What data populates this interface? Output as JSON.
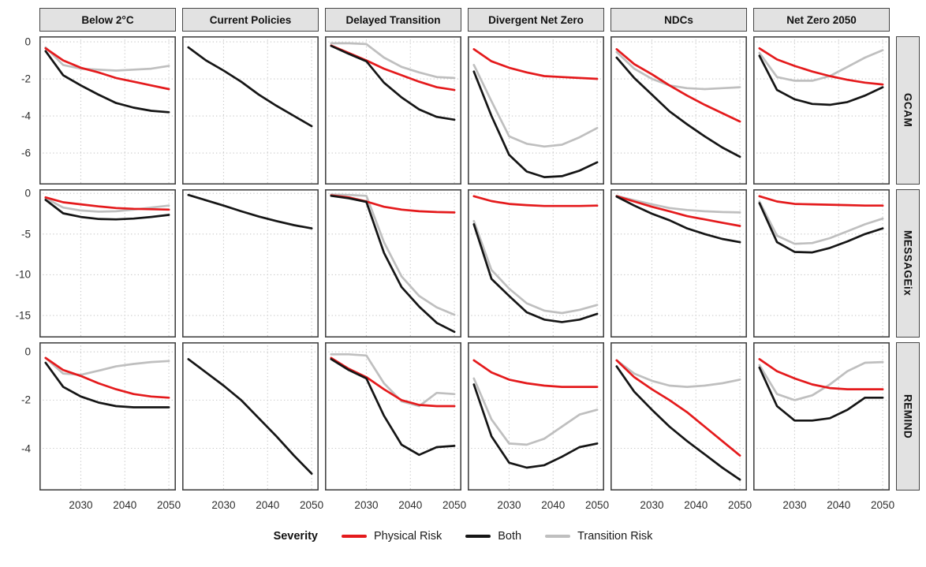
{
  "chart_data": {
    "type": "line",
    "x": [
      2022,
      2026,
      2030,
      2034,
      2038,
      2042,
      2046,
      2050
    ],
    "xlim": [
      2020.6,
      2051.6
    ],
    "xticks": [
      2030,
      2040,
      2050
    ],
    "grid": "dotted",
    "col_facets": [
      "Below 2°C",
      "Current Policies",
      "Delayed Transition",
      "Divergent Net Zero",
      "NDCs",
      "Net Zero 2050"
    ],
    "row_facets": [
      "GCAM",
      "MESSAGEix",
      "REMIND"
    ],
    "legend": {
      "title": "Severity",
      "entries": [
        {
          "label": "Physical Risk",
          "color": "#e41a1c"
        },
        {
          "label": "Both",
          "color": "#151515"
        },
        {
          "label": "Transition Risk",
          "color": "#bfbfbf"
        }
      ]
    },
    "rows": [
      {
        "model": "GCAM",
        "ylim": [
          -7.7,
          0.3
        ],
        "yticks": [
          0,
          -2,
          -4,
          -6
        ],
        "panels": [
          {
            "scenario": "Below 2°C",
            "series": [
              {
                "name": "Transition Risk",
                "values": [
                  -0.3,
                  -1.25,
                  -1.45,
                  -1.5,
                  -1.55,
                  -1.5,
                  -1.45,
                  -1.3
                ]
              },
              {
                "name": "Physical Risk",
                "values": [
                  -0.35,
                  -1.0,
                  -1.4,
                  -1.65,
                  -1.95,
                  -2.15,
                  -2.35,
                  -2.55
                ]
              },
              {
                "name": "Both",
                "values": [
                  -0.5,
                  -1.8,
                  -2.35,
                  -2.85,
                  -3.3,
                  -3.55,
                  -3.72,
                  -3.8
                ]
              }
            ]
          },
          {
            "scenario": "Current Policies",
            "series": [
              {
                "name": "Both",
                "values": [
                  -0.3,
                  -1.0,
                  -1.55,
                  -2.15,
                  -2.85,
                  -3.45,
                  -4.0,
                  -4.55
                ]
              }
            ]
          },
          {
            "scenario": "Delayed Transition",
            "series": [
              {
                "name": "Transition Risk",
                "values": [
                  -0.08,
                  -0.08,
                  -0.12,
                  -0.85,
                  -1.35,
                  -1.65,
                  -1.9,
                  -1.95
                ]
              },
              {
                "name": "Physical Risk",
                "values": [
                  -0.2,
                  -0.6,
                  -1.0,
                  -1.45,
                  -1.8,
                  -2.15,
                  -2.45,
                  -2.6
                ]
              },
              {
                "name": "Both",
                "values": [
                  -0.22,
                  -0.65,
                  -1.05,
                  -2.2,
                  -3.0,
                  -3.65,
                  -4.05,
                  -4.2
                ]
              }
            ]
          },
          {
            "scenario": "Divergent Net Zero",
            "series": [
              {
                "name": "Transition Risk",
                "values": [
                  -1.25,
                  -3.2,
                  -5.1,
                  -5.5,
                  -5.65,
                  -5.55,
                  -5.15,
                  -4.65
                ]
              },
              {
                "name": "Physical Risk",
                "values": [
                  -0.4,
                  -1.05,
                  -1.4,
                  -1.65,
                  -1.85,
                  -1.9,
                  -1.95,
                  -2.0
                ]
              },
              {
                "name": "Both",
                "values": [
                  -1.6,
                  -4.0,
                  -6.1,
                  -7.0,
                  -7.3,
                  -7.25,
                  -6.95,
                  -6.5
                ]
              }
            ]
          },
          {
            "scenario": "NDCs",
            "series": [
              {
                "name": "Transition Risk",
                "values": [
                  -0.55,
                  -1.45,
                  -2.0,
                  -2.35,
                  -2.5,
                  -2.55,
                  -2.5,
                  -2.45
                ]
              },
              {
                "name": "Physical Risk",
                "values": [
                  -0.4,
                  -1.2,
                  -1.75,
                  -2.35,
                  -2.9,
                  -3.4,
                  -3.85,
                  -4.3
                ]
              },
              {
                "name": "Both",
                "values": [
                  -0.85,
                  -1.95,
                  -2.85,
                  -3.75,
                  -4.45,
                  -5.1,
                  -5.7,
                  -6.2
                ]
              }
            ]
          },
          {
            "scenario": "Net Zero 2050",
            "series": [
              {
                "name": "Transition Risk",
                "values": [
                  -0.6,
                  -1.9,
                  -2.1,
                  -2.1,
                  -1.85,
                  -1.35,
                  -0.85,
                  -0.45
                ]
              },
              {
                "name": "Physical Risk",
                "values": [
                  -0.35,
                  -0.95,
                  -1.3,
                  -1.6,
                  -1.85,
                  -2.05,
                  -2.2,
                  -2.3
                ]
              },
              {
                "name": "Both",
                "values": [
                  -0.75,
                  -2.6,
                  -3.1,
                  -3.35,
                  -3.4,
                  -3.25,
                  -2.9,
                  -2.45
                ]
              }
            ]
          }
        ]
      },
      {
        "model": "MESSAGEix",
        "ylim": [
          -17.7,
          0.5
        ],
        "yticks": [
          0,
          -5,
          -10,
          -15
        ],
        "panels": [
          {
            "scenario": "Below 2°C",
            "series": [
              {
                "name": "Transition Risk",
                "values": [
                  -0.6,
                  -1.75,
                  -2.1,
                  -2.25,
                  -2.2,
                  -2.0,
                  -1.75,
                  -1.5
                ]
              },
              {
                "name": "Physical Risk",
                "values": [
                  -0.5,
                  -1.1,
                  -1.35,
                  -1.6,
                  -1.8,
                  -1.9,
                  -1.95,
                  -2.0
                ]
              },
              {
                "name": "Both",
                "values": [
                  -0.8,
                  -2.45,
                  -2.9,
                  -3.15,
                  -3.2,
                  -3.1,
                  -2.9,
                  -2.65
                ]
              }
            ]
          },
          {
            "scenario": "Current Policies",
            "series": [
              {
                "name": "Both",
                "values": [
                  -0.2,
                  -0.85,
                  -1.5,
                  -2.2,
                  -2.85,
                  -3.4,
                  -3.9,
                  -4.3
                ]
              }
            ]
          },
          {
            "scenario": "Delayed Transition",
            "series": [
              {
                "name": "Transition Risk",
                "values": [
                  -0.15,
                  -0.2,
                  -0.3,
                  -6.0,
                  -10.2,
                  -12.6,
                  -14.0,
                  -14.9
                ]
              },
              {
                "name": "Physical Risk",
                "values": [
                  -0.25,
                  -0.5,
                  -1.0,
                  -1.65,
                  -2.0,
                  -2.2,
                  -2.3,
                  -2.35
                ]
              },
              {
                "name": "Both",
                "values": [
                  -0.3,
                  -0.6,
                  -1.05,
                  -7.3,
                  -11.5,
                  -13.9,
                  -15.9,
                  -17.0
                ]
              }
            ]
          },
          {
            "scenario": "Divergent Net Zero",
            "series": [
              {
                "name": "Transition Risk",
                "values": [
                  -3.4,
                  -9.4,
                  -11.7,
                  -13.5,
                  -14.4,
                  -14.7,
                  -14.3,
                  -13.7
                ]
              },
              {
                "name": "Physical Risk",
                "values": [
                  -0.35,
                  -0.95,
                  -1.3,
                  -1.45,
                  -1.55,
                  -1.55,
                  -1.55,
                  -1.5
                ]
              },
              {
                "name": "Both",
                "values": [
                  -3.8,
                  -10.5,
                  -12.6,
                  -14.6,
                  -15.5,
                  -15.8,
                  -15.5,
                  -14.8
                ]
              }
            ]
          },
          {
            "scenario": "NDCs",
            "series": [
              {
                "name": "Transition Risk",
                "values": [
                  -0.3,
                  -0.85,
                  -1.35,
                  -1.8,
                  -2.05,
                  -2.2,
                  -2.3,
                  -2.35
                ]
              },
              {
                "name": "Physical Risk",
                "values": [
                  -0.35,
                  -1.0,
                  -1.65,
                  -2.2,
                  -2.8,
                  -3.2,
                  -3.6,
                  -4.0
                ]
              },
              {
                "name": "Both",
                "values": [
                  -0.4,
                  -1.5,
                  -2.5,
                  -3.3,
                  -4.3,
                  -5.0,
                  -5.6,
                  -6.0
                ]
              }
            ]
          },
          {
            "scenario": "Net Zero 2050",
            "series": [
              {
                "name": "Transition Risk",
                "values": [
                  -1.0,
                  -5.2,
                  -6.2,
                  -6.1,
                  -5.5,
                  -4.65,
                  -3.8,
                  -3.1
                ]
              },
              {
                "name": "Physical Risk",
                "values": [
                  -0.35,
                  -1.0,
                  -1.3,
                  -1.35,
                  -1.4,
                  -1.45,
                  -1.5,
                  -1.5
                ]
              },
              {
                "name": "Both",
                "values": [
                  -1.2,
                  -6.0,
                  -7.2,
                  -7.25,
                  -6.7,
                  -5.9,
                  -5.0,
                  -4.3
                ]
              }
            ]
          }
        ]
      },
      {
        "model": "REMIND",
        "ylim": [
          -5.75,
          0.4
        ],
        "yticks": [
          0,
          -2,
          -4
        ],
        "panels": [
          {
            "scenario": "Below 2°C",
            "series": [
              {
                "name": "Transition Risk",
                "values": [
                  -0.25,
                  -0.9,
                  -0.95,
                  -0.78,
                  -0.6,
                  -0.5,
                  -0.42,
                  -0.38
                ]
              },
              {
                "name": "Physical Risk",
                "values": [
                  -0.25,
                  -0.75,
                  -1.0,
                  -1.3,
                  -1.55,
                  -1.75,
                  -1.85,
                  -1.9
                ]
              },
              {
                "name": "Both",
                "values": [
                  -0.45,
                  -1.45,
                  -1.85,
                  -2.1,
                  -2.25,
                  -2.3,
                  -2.3,
                  -2.3
                ]
              }
            ]
          },
          {
            "scenario": "Current Policies",
            "series": [
              {
                "name": "Both",
                "values": [
                  -0.3,
                  -0.85,
                  -1.4,
                  -2.0,
                  -2.75,
                  -3.5,
                  -4.3,
                  -5.05
                ]
              }
            ]
          },
          {
            "scenario": "Delayed Transition",
            "series": [
              {
                "name": "Transition Risk",
                "values": [
                  -0.1,
                  -0.1,
                  -0.15,
                  -1.3,
                  -2.05,
                  -2.25,
                  -1.7,
                  -1.75
                ]
              },
              {
                "name": "Physical Risk",
                "values": [
                  -0.25,
                  -0.7,
                  -1.05,
                  -1.55,
                  -2.0,
                  -2.2,
                  -2.25,
                  -2.25
                ]
              },
              {
                "name": "Both",
                "values": [
                  -0.3,
                  -0.75,
                  -1.1,
                  -2.65,
                  -3.85,
                  -4.27,
                  -3.95,
                  -3.9
                ]
              }
            ]
          },
          {
            "scenario": "Divergent Net Zero",
            "series": [
              {
                "name": "Transition Risk",
                "values": [
                  -1.1,
                  -2.8,
                  -3.8,
                  -3.85,
                  -3.6,
                  -3.1,
                  -2.6,
                  -2.4
                ]
              },
              {
                "name": "Physical Risk",
                "values": [
                  -0.35,
                  -0.85,
                  -1.15,
                  -1.3,
                  -1.4,
                  -1.45,
                  -1.45,
                  -1.45
                ]
              },
              {
                "name": "Both",
                "values": [
                  -1.35,
                  -3.5,
                  -4.6,
                  -4.8,
                  -4.7,
                  -4.35,
                  -3.95,
                  -3.8
                ]
              }
            ]
          },
          {
            "scenario": "NDCs",
            "series": [
              {
                "name": "Transition Risk",
                "values": [
                  -0.35,
                  -0.9,
                  -1.2,
                  -1.4,
                  -1.45,
                  -1.4,
                  -1.3,
                  -1.15
                ]
              },
              {
                "name": "Physical Risk",
                "values": [
                  -0.35,
                  -1.05,
                  -1.55,
                  -2.0,
                  -2.5,
                  -3.1,
                  -3.7,
                  -4.3
                ]
              },
              {
                "name": "Both",
                "values": [
                  -0.6,
                  -1.65,
                  -2.4,
                  -3.1,
                  -3.7,
                  -4.25,
                  -4.8,
                  -5.3
                ]
              }
            ]
          },
          {
            "scenario": "Net Zero 2050",
            "series": [
              {
                "name": "Transition Risk",
                "values": [
                  -0.55,
                  -1.75,
                  -2.0,
                  -1.8,
                  -1.35,
                  -0.8,
                  -0.45,
                  -0.42
                ]
              },
              {
                "name": "Physical Risk",
                "values": [
                  -0.3,
                  -0.8,
                  -1.1,
                  -1.35,
                  -1.5,
                  -1.55,
                  -1.55,
                  -1.55
                ]
              },
              {
                "name": "Both",
                "values": [
                  -0.65,
                  -2.25,
                  -2.85,
                  -2.85,
                  -2.75,
                  -2.4,
                  -1.9,
                  -1.9
                ]
              }
            ]
          }
        ]
      }
    ],
    "style": {
      "strip_bg": "#e2e2e2",
      "panel_border": "#454545",
      "gridline_color": "#c8c8c8",
      "axis_text_color": "#2e2e2e"
    }
  }
}
